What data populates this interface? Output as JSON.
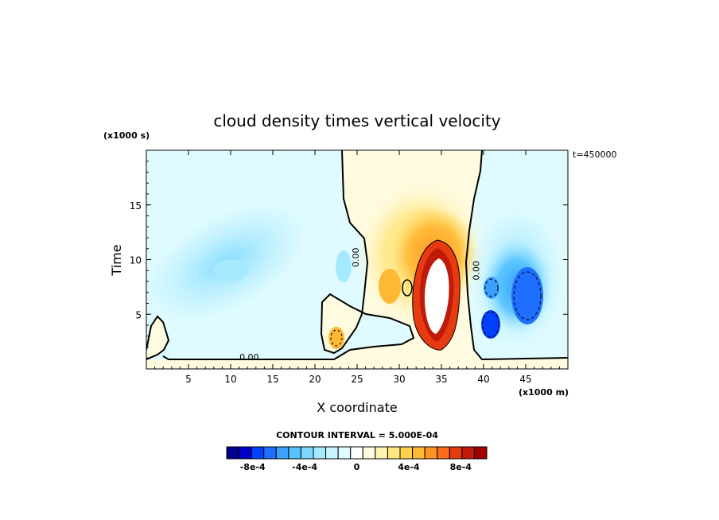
{
  "chart_data": {
    "type": "heatmap",
    "title": "cloud density times vertical velocity",
    "xlabel": "X coordinate",
    "ylabel": "Time",
    "x_units": "(x1000 m)",
    "y_units": "(x1000 s)",
    "timestamp": "t=450000",
    "xlim": [
      0,
      50
    ],
    "ylim": [
      0,
      20
    ],
    "x_ticks": [
      "5",
      "10",
      "15",
      "20",
      "25",
      "30",
      "35",
      "40",
      "45"
    ],
    "x_tick_values": [
      5,
      10,
      15,
      20,
      25,
      30,
      35,
      40,
      45
    ],
    "y_ticks": [
      "5",
      "10",
      "15"
    ],
    "y_tick_values": [
      5,
      10,
      15
    ],
    "contour_labels": [
      {
        "text": "0.00",
        "x": 25.2,
        "y": 10.2
      },
      {
        "text": "0.00",
        "x": 12.2,
        "y": 0.8
      },
      {
        "text": "0.00",
        "x": 39.5,
        "y": 9.0
      }
    ],
    "features": [
      {
        "kind": "positive-max",
        "center_x": 35.0,
        "center_y": 8.0,
        "peak": 0.001
      },
      {
        "kind": "positive",
        "center_x": 29.5,
        "center_y": 7.5,
        "peak": 0.0006
      },
      {
        "kind": "positive",
        "center_x": 22.5,
        "center_y": 3.0,
        "peak": 0.0005
      },
      {
        "kind": "negative-min",
        "center_x": 41.0,
        "center_y": 4.0,
        "peak": -0.0007
      },
      {
        "kind": "negative",
        "center_x": 45.0,
        "center_y": 7.5,
        "peak": -0.00055
      },
      {
        "kind": "negative",
        "center_x": 10.0,
        "center_y": 10.0,
        "peak": -0.0002
      }
    ],
    "colorbar": {
      "title": "CONTOUR INTERVAL = 5.000E-04",
      "tick_labels": [
        "-8e-4",
        "-4e-4",
        "0",
        "4e-4",
        "8e-4"
      ],
      "tick_values": [
        -0.0008,
        -0.0004,
        0,
        0.0004,
        0.0008
      ],
      "levels": [
        -0.001,
        -0.0009,
        -0.0008,
        -0.0007,
        -0.0006,
        -0.0005,
        -0.0004,
        -0.0003,
        -0.0002,
        -0.0001,
        0,
        0.0001,
        0.0002,
        0.0003,
        0.0004,
        0.0005,
        0.0006,
        0.0007,
        0.0008,
        0.0009,
        0.001
      ],
      "colors": [
        "#00008b",
        "#0000cd",
        "#0040ff",
        "#1e6fff",
        "#3ca0ff",
        "#55c3ff",
        "#7dd8ff",
        "#a6eaff",
        "#c8f4ff",
        "#e0fbff",
        "#ffffff",
        "#fffbe0",
        "#fff4b0",
        "#ffe680",
        "#ffd24d",
        "#ffb833",
        "#ff9422",
        "#ff6a1a",
        "#e83a10",
        "#c01a0a",
        "#a00000"
      ]
    }
  }
}
